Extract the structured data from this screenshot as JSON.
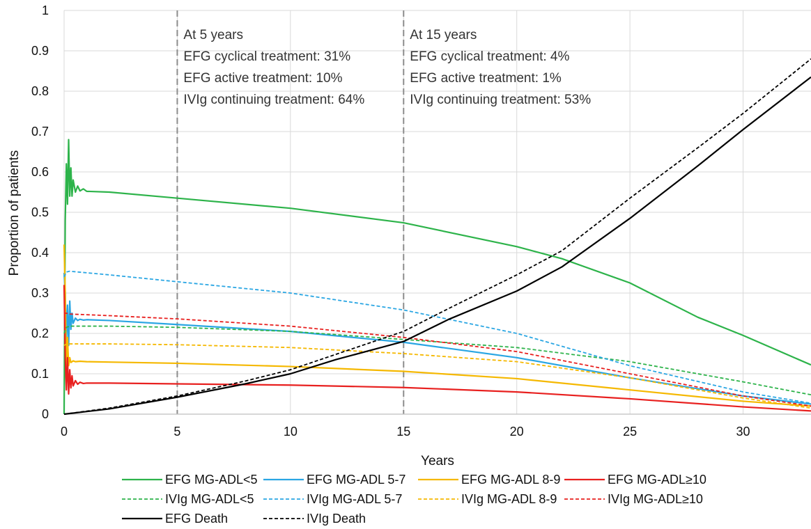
{
  "chart_data": {
    "type": "line",
    "title": "",
    "xlabel": "Years",
    "ylabel": "Proportion of patients",
    "xlim": [
      0,
      33
    ],
    "ylim": [
      0,
      1
    ],
    "x_ticks": [
      0,
      5,
      10,
      15,
      20,
      25,
      30
    ],
    "x_tick_labels": [
      "0",
      "5",
      "10",
      "15",
      "20",
      "25",
      "30"
    ],
    "y_ticks": [
      0,
      0.1,
      0.2,
      0.3,
      0.4,
      0.5,
      0.6,
      0.7,
      0.8,
      0.9,
      1
    ],
    "y_tick_labels": [
      "0",
      "0.1",
      "0.2",
      "0.3",
      "0.4",
      "0.5",
      "0.6",
      "0.7",
      "0.8",
      "0.9",
      "1"
    ],
    "grid": true,
    "legend_position": "bottom",
    "vlines": [
      5,
      15
    ],
    "annotations": [
      {
        "x": 5,
        "lines": [
          "At 5 years",
          "EFG cyclical treatment: 31%",
          "EFG active treatment: 10%",
          "IVIg continuing treatment: 64%"
        ]
      },
      {
        "x": 15,
        "lines": [
          "At 15 years",
          "EFG cyclical treatment: 4%",
          "EFG active treatment: 1%",
          "IVIg continuing treatment: 53%"
        ]
      }
    ],
    "series": [
      {
        "name": "EFG MG-ADL<5",
        "color": "#2db34a",
        "dash": "solid",
        "x": [
          0,
          0.05,
          0.1,
          0.15,
          0.2,
          0.25,
          0.3,
          0.35,
          0.4,
          0.5,
          0.6,
          0.7,
          0.85,
          1,
          2,
          5,
          10,
          15,
          20,
          22,
          25,
          28,
          30,
          33
        ],
        "y": [
          0,
          0.48,
          0.62,
          0.52,
          0.68,
          0.54,
          0.61,
          0.54,
          0.58,
          0.55,
          0.565,
          0.553,
          0.558,
          0.552,
          0.55,
          0.535,
          0.51,
          0.474,
          0.415,
          0.385,
          0.325,
          0.24,
          0.195,
          0.122
        ]
      },
      {
        "name": "EFG MG-ADL 5-7",
        "color": "#2aa6e3",
        "dash": "solid",
        "x": [
          0,
          0.05,
          0.1,
          0.15,
          0.2,
          0.25,
          0.3,
          0.35,
          0.4,
          0.5,
          0.6,
          0.7,
          0.85,
          1,
          2,
          5,
          10,
          15,
          20,
          25,
          30,
          33
        ],
        "y": [
          0.35,
          0.3,
          0.18,
          0.27,
          0.17,
          0.28,
          0.21,
          0.25,
          0.225,
          0.238,
          0.232,
          0.235,
          0.233,
          0.234,
          0.232,
          0.222,
          0.205,
          0.178,
          0.14,
          0.09,
          0.045,
          0.025
        ]
      },
      {
        "name": "EFG MG-ADL 8-9",
        "color": "#f5b800",
        "dash": "solid",
        "x": [
          0,
          0.05,
          0.1,
          0.15,
          0.2,
          0.25,
          0.3,
          0.4,
          0.5,
          0.7,
          1,
          2,
          5,
          10,
          15,
          20,
          25,
          30,
          33
        ],
        "y": [
          0.42,
          0.3,
          0.1,
          0.19,
          0.12,
          0.14,
          0.128,
          0.132,
          0.13,
          0.131,
          0.13,
          0.129,
          0.126,
          0.118,
          0.106,
          0.088,
          0.06,
          0.032,
          0.02
        ]
      },
      {
        "name": "EFG MG-ADL≥10",
        "color": "#e8201f",
        "dash": "solid",
        "x": [
          0,
          0.05,
          0.1,
          0.15,
          0.2,
          0.25,
          0.3,
          0.35,
          0.4,
          0.5,
          0.6,
          0.7,
          0.85,
          1,
          2,
          5,
          10,
          15,
          20,
          25,
          30,
          33
        ],
        "y": [
          0.32,
          0.14,
          0.06,
          0.14,
          0.05,
          0.11,
          0.065,
          0.095,
          0.07,
          0.083,
          0.074,
          0.079,
          0.076,
          0.077,
          0.077,
          0.075,
          0.072,
          0.066,
          0.055,
          0.038,
          0.018,
          0.008
        ]
      },
      {
        "name": "IVIg MG-ADL<5",
        "color": "#2db34a",
        "dash": "dashed",
        "x": [
          0,
          0.1,
          0.25,
          2,
          5,
          10,
          15,
          20,
          25,
          30,
          33
        ],
        "y": [
          0.2,
          0.215,
          0.218,
          0.218,
          0.215,
          0.205,
          0.185,
          0.165,
          0.13,
          0.08,
          0.048
        ]
      },
      {
        "name": "IVIg MG-ADL 5-7",
        "color": "#2aa6e3",
        "dash": "dashed",
        "x": [
          0,
          0.1,
          0.25,
          2,
          5,
          10,
          15,
          20,
          25,
          30,
          33
        ],
        "y": [
          0.34,
          0.352,
          0.354,
          0.345,
          0.328,
          0.3,
          0.258,
          0.2,
          0.12,
          0.055,
          0.027
        ]
      },
      {
        "name": "IVIg MG-ADL 8-9",
        "color": "#f5b800",
        "dash": "dashed",
        "x": [
          0,
          0.1,
          0.25,
          2,
          5,
          10,
          15,
          20,
          25,
          30,
          33
        ],
        "y": [
          0.17,
          0.174,
          0.174,
          0.174,
          0.172,
          0.165,
          0.15,
          0.13,
          0.09,
          0.04,
          0.015
        ]
      },
      {
        "name": "IVIg MG-ADL≥10",
        "color": "#e8201f",
        "dash": "dashed",
        "x": [
          0,
          0.1,
          0.25,
          2,
          5,
          10,
          15,
          20,
          25,
          30,
          33
        ],
        "y": [
          0.25,
          0.25,
          0.248,
          0.244,
          0.236,
          0.218,
          0.19,
          0.155,
          0.1,
          0.045,
          0.02
        ]
      },
      {
        "name": "EFG Death",
        "color": "#000000",
        "dash": "solid",
        "x": [
          0,
          2,
          5,
          8,
          10,
          12,
          15,
          17,
          20,
          22,
          25,
          28,
          30,
          33
        ],
        "y": [
          0,
          0.013,
          0.042,
          0.075,
          0.1,
          0.135,
          0.18,
          0.235,
          0.305,
          0.365,
          0.485,
          0.615,
          0.705,
          0.835
        ]
      },
      {
        "name": "IVIg Death",
        "color": "#000000",
        "dash": "dashed",
        "x": [
          0,
          2,
          5,
          8,
          10,
          12,
          15,
          17,
          20,
          22,
          25,
          28,
          30,
          33
        ],
        "y": [
          0,
          0.015,
          0.045,
          0.082,
          0.11,
          0.148,
          0.205,
          0.262,
          0.345,
          0.405,
          0.535,
          0.66,
          0.745,
          0.88
        ]
      }
    ]
  }
}
